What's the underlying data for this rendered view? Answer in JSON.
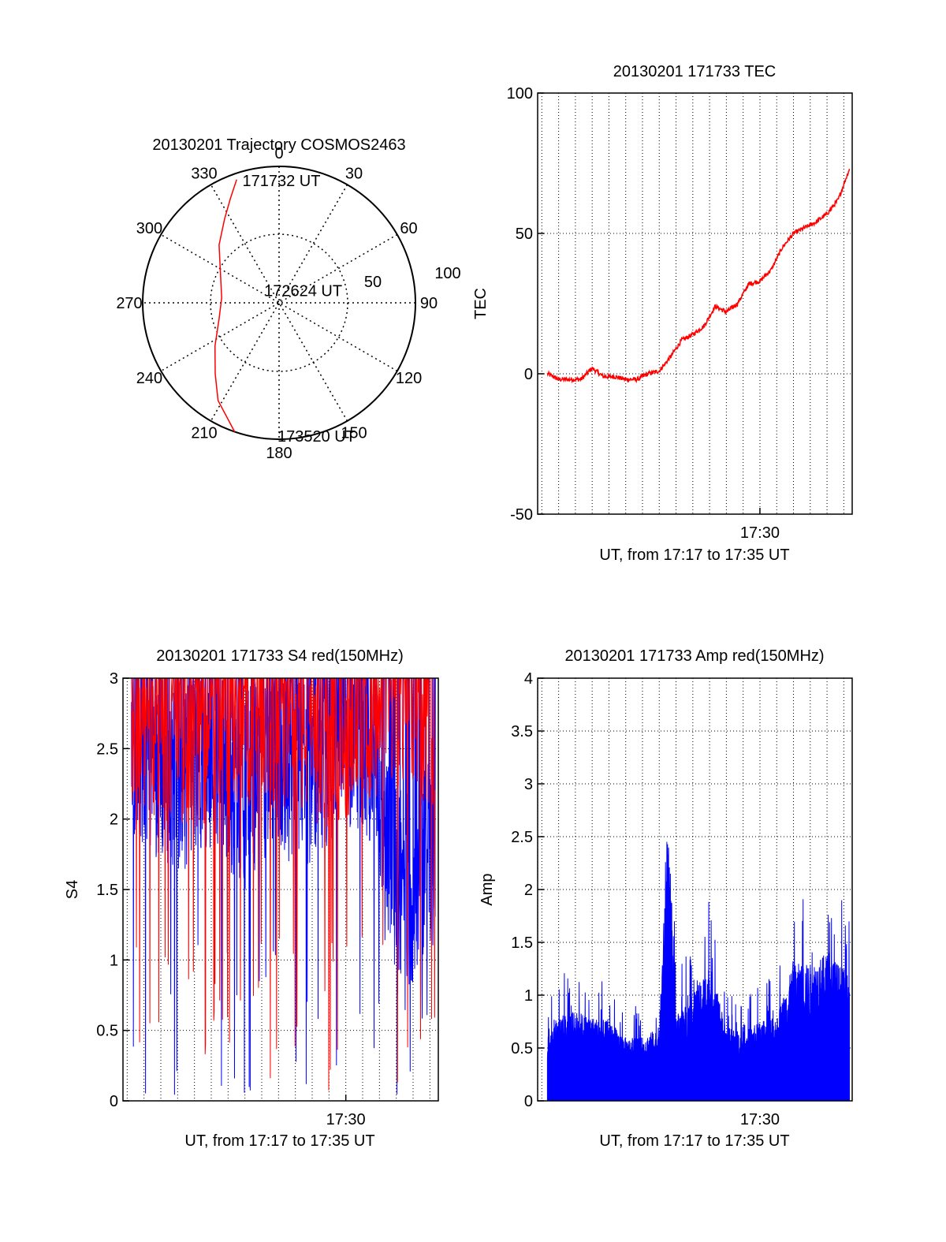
{
  "colors": {
    "red": "#ff0000",
    "blue": "#0000ff",
    "axis": "#000000",
    "grid": "#000000"
  },
  "chart_data": [
    {
      "type": "polar",
      "title": "20130201 Trajectory COSMOS2463",
      "azimuth_labels": [
        "0",
        "30",
        "60",
        "90",
        "120",
        "150",
        "180",
        "210",
        "240",
        "270",
        "300",
        "330"
      ],
      "radial_labels": [
        "50",
        "100"
      ],
      "grid": true,
      "series": [
        {
          "color": "red",
          "points": [
            {
              "azimuth": 341,
              "zenith": 86
            },
            {
              "azimuth": 335,
              "zenith": 76
            },
            {
              "azimuth": 327,
              "zenith": 66
            },
            {
              "azimuth": 314,
              "zenith": 55
            },
            {
              "azimuth": 296,
              "zenith": 43
            },
            {
              "azimuth": 275,
              "zenith": 38
            },
            {
              "azimuth": 255,
              "zenith": 41
            },
            {
              "azimuth": 236,
              "zenith": 51
            },
            {
              "azimuth": 222,
              "zenith": 63
            },
            {
              "azimuth": 212,
              "zenith": 76
            },
            {
              "azimuth": 199,
              "zenith": 90
            }
          ]
        }
      ],
      "annotations": [
        {
          "text": "171732 UT",
          "azimuth": 344,
          "zenith": 84
        },
        {
          "text": "172624 UT",
          "azimuth": 313,
          "zenith": 12
        },
        {
          "text": "173520 UT",
          "azimuth": 180,
          "zenith": 88
        }
      ]
    },
    {
      "type": "line",
      "title": "20130201 171733 TEC",
      "xlabel": "UT, from 17:17 to 17:35 UT",
      "ylabel": "TEC",
      "xlim": [
        "17:16:45",
        "17:35:30"
      ],
      "ylim": [
        -50,
        100
      ],
      "yticks": [
        "-50",
        "0",
        "50",
        "100"
      ],
      "xticks": [
        {
          "time": "17:30",
          "label": "17:30"
        }
      ],
      "grid": true,
      "series": [
        {
          "color": "red",
          "time": [
            "17:17:20",
            "17:18:00",
            "17:18:40",
            "17:19:20",
            "17:20:00",
            "17:20:40",
            "17:21:20",
            "17:22:00",
            "17:22:40",
            "17:23:20",
            "17:24:00",
            "17:24:40",
            "17:25:20",
            "17:26:00",
            "17:26:40",
            "17:27:20",
            "17:28:00",
            "17:28:40",
            "17:29:20",
            "17:30:00",
            "17:30:40",
            "17:31:20",
            "17:32:00",
            "17:32:40",
            "17:33:20",
            "17:34:00",
            "17:34:40",
            "17:35:20"
          ],
          "values": [
            0,
            -2,
            -2,
            -2,
            2,
            -1,
            -1,
            -2,
            -2,
            0,
            1,
            6,
            12,
            14,
            17,
            24,
            22,
            25,
            32,
            33,
            37,
            45,
            50,
            52,
            54,
            57,
            62,
            73
          ]
        }
      ]
    },
    {
      "type": "line",
      "title": "20130201 171733 S4 red(150MHz)",
      "xlabel": "UT, from 17:17 to 17:35 UT",
      "ylabel": "S4",
      "xlim": [
        "17:16:45",
        "17:35:30"
      ],
      "ylim": [
        0,
        3
      ],
      "yticks": [
        "0",
        "0.5",
        "1",
        "1.5",
        "2",
        "2.5",
        "3"
      ],
      "xticks": [
        {
          "time": "17:30",
          "label": "17:30"
        }
      ],
      "grid": true,
      "series": [
        {
          "color": "blue",
          "time": [
            "17:17:00",
            "17:18:00",
            "17:19:00",
            "17:20:00",
            "17:21:00",
            "17:22:00",
            "17:23:00",
            "17:24:00",
            "17:25:00",
            "17:26:00",
            "17:27:00",
            "17:28:00",
            "17:29:00",
            "17:30:00",
            "17:31:00",
            "17:32:00",
            "17:33:00",
            "17:34:00",
            "17:35:00"
          ],
          "values": [
            2.6,
            2.5,
            2.4,
            2.3,
            2.4,
            2.5,
            2.3,
            2.2,
            2.4,
            2.5,
            2.3,
            2.4,
            2.5,
            2.6,
            2.6,
            2.2,
            1.6,
            1.5,
            1.8
          ]
        },
        {
          "color": "red",
          "time": [
            "17:17:00",
            "17:19:00",
            "17:21:00",
            "17:23:00",
            "17:25:00",
            "17:27:00",
            "17:29:00",
            "17:31:00",
            "17:33:00",
            "17:35:00"
          ],
          "values": [
            2.8,
            2.7,
            2.6,
            2.7,
            2.8,
            2.7,
            2.6,
            2.8,
            2.9,
            2.8
          ]
        }
      ]
    },
    {
      "type": "bar",
      "title": "20130201 171733 Amp red(150MHz)",
      "xlabel": "UT, from 17:17 to 17:35 UT",
      "ylabel": "Amp",
      "xlim": [
        "17:16:45",
        "17:35:30"
      ],
      "ylim": [
        0,
        4
      ],
      "yticks": [
        "0",
        "0.5",
        "1",
        "1.5",
        "2",
        "2.5",
        "3",
        "3.5",
        "4"
      ],
      "xticks": [
        {
          "time": "17:30",
          "label": "17:30"
        }
      ],
      "grid": true,
      "series": [
        {
          "color": "blue",
          "time": [
            "17:17:20",
            "17:18:00",
            "17:19:00",
            "17:20:00",
            "17:21:00",
            "17:22:00",
            "17:23:00",
            "17:24:00",
            "17:24:30",
            "17:25:00",
            "17:26:00",
            "17:27:00",
            "17:28:00",
            "17:29:00",
            "17:30:00",
            "17:31:00",
            "17:32:00",
            "17:33:00",
            "17:34:00",
            "17:35:20"
          ],
          "values": [
            0.7,
            0.8,
            0.85,
            0.8,
            0.75,
            0.6,
            0.6,
            0.7,
            2.6,
            0.8,
            1.0,
            1.3,
            0.7,
            0.65,
            0.75,
            0.8,
            1.3,
            1.3,
            1.4,
            1.2
          ]
        }
      ]
    }
  ]
}
